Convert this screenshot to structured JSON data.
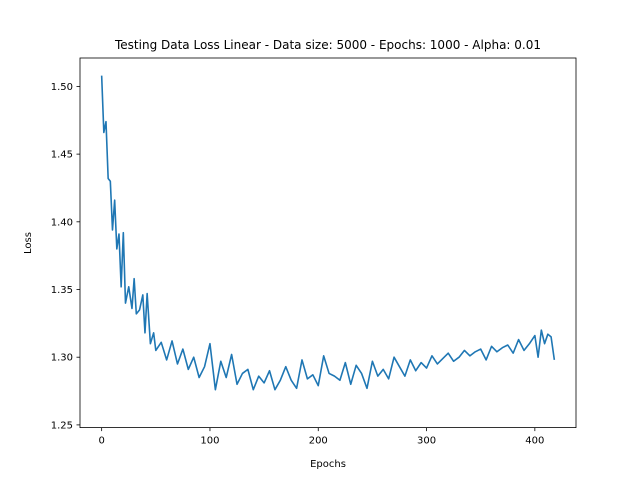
{
  "chart_data": {
    "type": "line",
    "title": "Testing Data Loss Linear - Data size: 5000 - Epochs: 1000 - Alpha: 0.01",
    "xlabel": "Epochs",
    "ylabel": "Loss",
    "xlim": [
      -20,
      438
    ],
    "ylim": [
      1.248,
      1.521
    ],
    "xticks": [
      0,
      100,
      200,
      300,
      400
    ],
    "yticks": [
      1.25,
      1.3,
      1.35,
      1.4,
      1.45,
      1.5
    ],
    "ytick_labels": [
      "1.25",
      "1.30",
      "1.35",
      "1.40",
      "1.45",
      "1.50"
    ],
    "grid": false,
    "line_color": "#1f77b4",
    "series": [
      {
        "x": [
          0,
          2,
          4,
          6,
          8,
          10,
          12,
          14,
          16,
          18,
          20,
          22,
          25,
          28,
          30,
          32,
          35,
          38,
          40,
          42,
          45,
          48,
          50,
          55,
          60,
          65,
          70,
          75,
          80,
          85,
          90,
          95,
          100,
          105,
          110,
          115,
          120,
          125,
          130,
          135,
          140,
          145,
          150,
          155,
          160,
          165,
          170,
          175,
          180,
          185,
          190,
          195,
          200,
          205,
          210,
          215,
          220,
          225,
          230,
          235,
          240,
          245,
          250,
          255,
          260,
          265,
          270,
          275,
          280,
          285,
          290,
          295,
          300,
          305,
          310,
          315,
          320,
          325,
          330,
          335,
          340,
          345,
          350,
          355,
          360,
          365,
          370,
          375,
          380,
          385,
          390,
          395,
          400,
          403,
          406,
          409,
          412,
          415,
          418
        ],
        "values": [
          1.508,
          1.466,
          1.474,
          1.432,
          1.43,
          1.394,
          1.416,
          1.38,
          1.391,
          1.352,
          1.392,
          1.34,
          1.352,
          1.336,
          1.358,
          1.332,
          1.335,
          1.346,
          1.318,
          1.347,
          1.31,
          1.318,
          1.305,
          1.311,
          1.298,
          1.312,
          1.295,
          1.306,
          1.291,
          1.3,
          1.285,
          1.293,
          1.31,
          1.276,
          1.297,
          1.285,
          1.302,
          1.28,
          1.288,
          1.291,
          1.276,
          1.286,
          1.281,
          1.29,
          1.276,
          1.283,
          1.293,
          1.283,
          1.277,
          1.298,
          1.284,
          1.287,
          1.279,
          1.301,
          1.288,
          1.286,
          1.283,
          1.296,
          1.28,
          1.294,
          1.288,
          1.277,
          1.297,
          1.286,
          1.291,
          1.284,
          1.3,
          1.293,
          1.286,
          1.298,
          1.29,
          1.296,
          1.292,
          1.301,
          1.295,
          1.299,
          1.303,
          1.297,
          1.3,
          1.305,
          1.301,
          1.304,
          1.306,
          1.298,
          1.308,
          1.304,
          1.307,
          1.309,
          1.303,
          1.313,
          1.305,
          1.31,
          1.316,
          1.3,
          1.32,
          1.31,
          1.317,
          1.315,
          1.298
        ]
      }
    ]
  }
}
